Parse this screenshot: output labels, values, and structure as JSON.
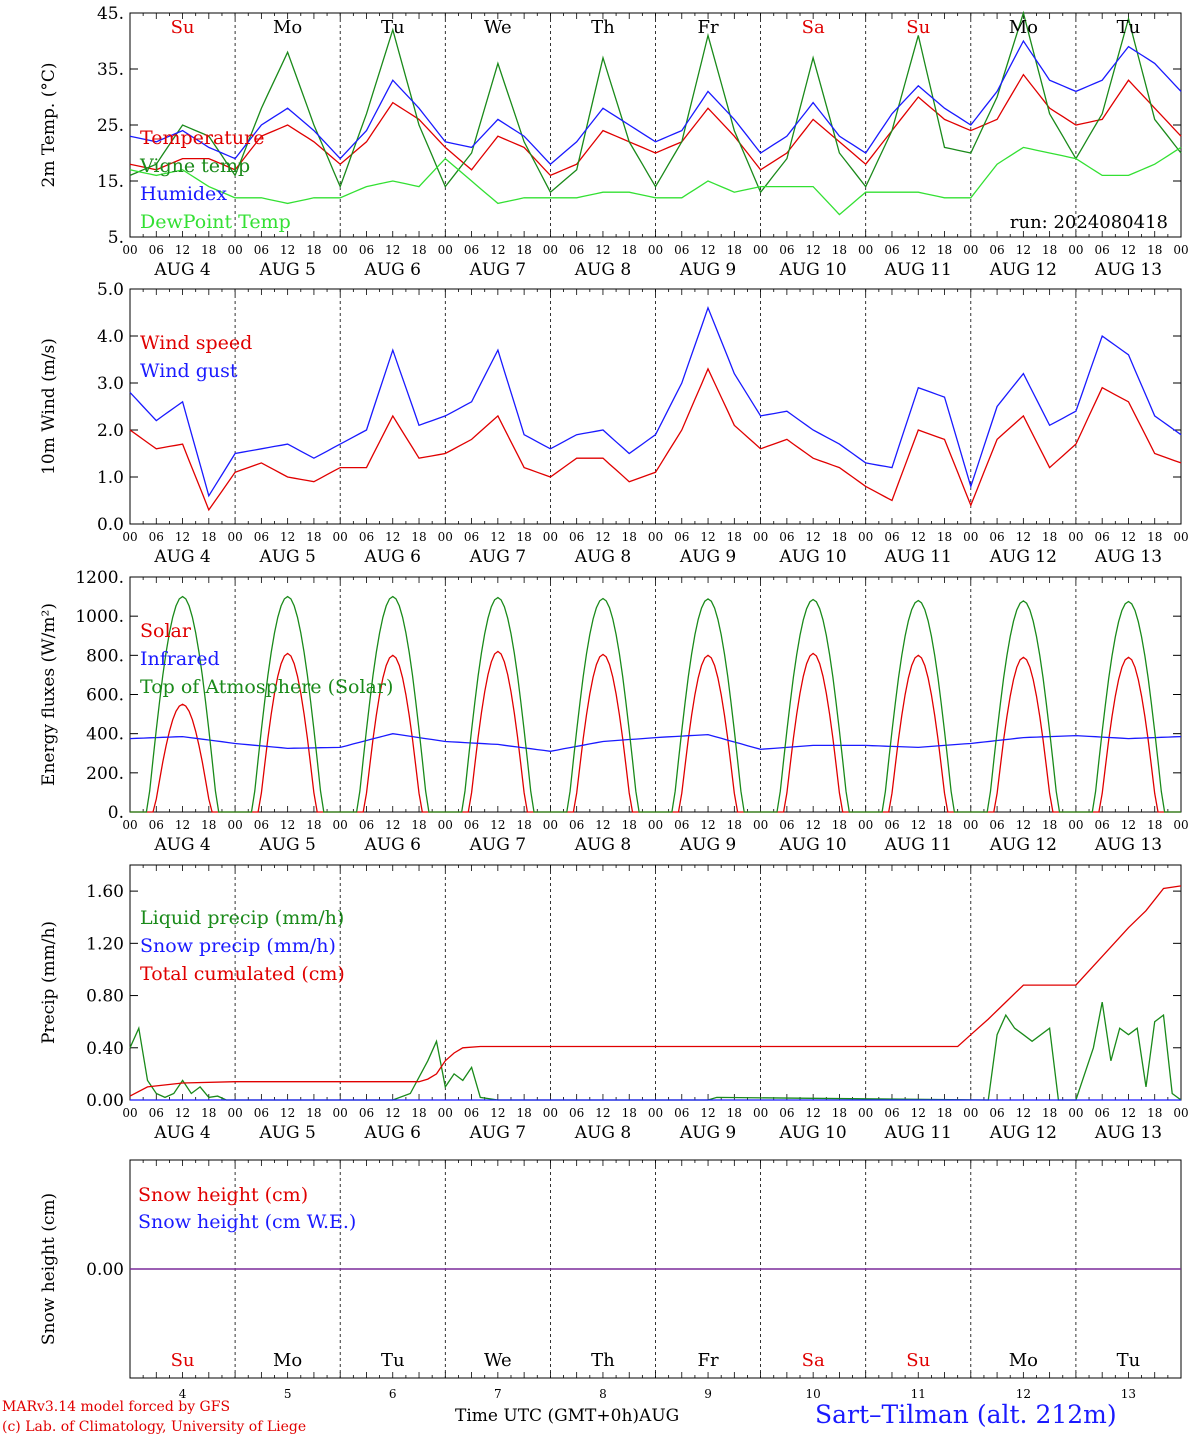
{
  "station": "Sart–Tilman (alt. 212m)",
  "run_label": "run: 2024080418",
  "credit_line1": "MARv3.14 model forced by GFS",
  "credit_line2": "(c) Lab. of Climatology, University of Liege",
  "x_axis_label": "Time UTC (GMT+0h)",
  "month_label": "AUG",
  "colors": {
    "red": "#e00000",
    "green": "#1a8a1a",
    "blue": "#1a1aff",
    "lightgreen": "#33e033",
    "purple": "#7a2a9a",
    "grid": "#000000"
  },
  "days": {
    "names": [
      "Su",
      "Mo",
      "Tu",
      "We",
      "Th",
      "Fr",
      "Sa",
      "Su",
      "Mo",
      "Tu"
    ],
    "weekend": [
      true,
      false,
      false,
      false,
      false,
      false,
      true,
      true,
      false,
      false
    ],
    "labels": [
      "AUG  4",
      "AUG  5",
      "AUG  6",
      "AUG  7",
      "AUG  8",
      "AUG  9",
      "AUG 10",
      "AUG 11",
      "AUG 12",
      "AUG 13"
    ],
    "numbers": [
      "4",
      "5",
      "6",
      "7",
      "8",
      "9",
      "10",
      "11",
      "12",
      "13"
    ],
    "hour_ticks": [
      "00",
      "06",
      "12",
      "18"
    ],
    "end_tick": "00"
  },
  "chart_data": [
    {
      "type": "line",
      "ylabel": "2m Temp. (°C)",
      "ylim": [
        5,
        45
      ],
      "yticks": [
        "5.",
        "15.",
        "25.",
        "35.",
        "45."
      ],
      "x_hours_from_start": [
        0,
        6,
        12,
        18,
        24,
        30,
        36,
        42,
        48,
        54,
        60,
        66,
        72,
        78,
        84,
        90,
        96,
        102,
        108,
        114,
        120,
        126,
        132,
        138,
        144,
        150,
        156,
        162,
        168,
        174,
        180,
        186,
        192,
        198,
        204,
        210,
        216,
        222,
        228,
        234,
        240
      ],
      "series": [
        {
          "name": "Temperature",
          "color": "red",
          "values": [
            18,
            17,
            19,
            19,
            17,
            23,
            25,
            22,
            18,
            22,
            29,
            26,
            21,
            17,
            23,
            21,
            16,
            18,
            24,
            22,
            20,
            22,
            28,
            23,
            17,
            20,
            26,
            22,
            18,
            24,
            30,
            26,
            24,
            26,
            34,
            28,
            25,
            26,
            33,
            28,
            23
          ]
        },
        {
          "name": "Vigne temp",
          "color": "green",
          "values": [
            16,
            18,
            25,
            23,
            16,
            28,
            38,
            25,
            14,
            27,
            42,
            25,
            14,
            20,
            36,
            22,
            13,
            17,
            37,
            22,
            14,
            22,
            41,
            24,
            13,
            19,
            37,
            20,
            14,
            24,
            41,
            21,
            20,
            30,
            45,
            27,
            19,
            27,
            44,
            26,
            20
          ]
        },
        {
          "name": "Humidex",
          "color": "blue",
          "values": [
            23,
            22,
            24,
            21,
            19,
            25,
            28,
            24,
            19,
            24,
            33,
            28,
            22,
            21,
            26,
            23,
            18,
            22,
            28,
            25,
            22,
            24,
            31,
            26,
            20,
            23,
            29,
            23,
            20,
            27,
            32,
            28,
            25,
            31,
            40,
            33,
            31,
            33,
            39,
            36,
            31
          ]
        },
        {
          "name": "DewPoint Temp",
          "color": "lightgreen",
          "values": [
            17,
            16,
            17,
            14,
            12,
            12,
            11,
            12,
            12,
            14,
            15,
            14,
            19,
            15,
            11,
            12,
            12,
            12,
            13,
            13,
            12,
            12,
            15,
            13,
            14,
            14,
            14,
            9,
            13,
            13,
            13,
            12,
            12,
            18,
            21,
            20,
            19,
            16,
            16,
            18,
            21
          ]
        }
      ],
      "annotation": "run: 2024080418"
    },
    {
      "type": "line",
      "ylabel": "10m Wind (m/s)",
      "ylim": [
        0,
        5
      ],
      "yticks": [
        "0.0",
        "1.0",
        "2.0",
        "3.0",
        "4.0",
        "5.0"
      ],
      "x_hours_from_start": [
        0,
        6,
        12,
        18,
        24,
        30,
        36,
        42,
        48,
        54,
        60,
        66,
        72,
        78,
        84,
        90,
        96,
        102,
        108,
        114,
        120,
        126,
        132,
        138,
        144,
        150,
        156,
        162,
        168,
        174,
        180,
        186,
        192,
        198,
        204,
        210,
        216,
        222,
        228,
        234,
        240
      ],
      "series": [
        {
          "name": "Wind speed",
          "color": "red",
          "values": [
            2.0,
            1.6,
            1.7,
            0.3,
            1.1,
            1.3,
            1.0,
            0.9,
            1.2,
            1.2,
            2.3,
            1.4,
            1.5,
            1.8,
            2.3,
            1.2,
            1.0,
            1.4,
            1.4,
            0.9,
            1.1,
            2.0,
            3.3,
            2.1,
            1.6,
            1.8,
            1.4,
            1.2,
            0.8,
            0.5,
            2.0,
            1.8,
            0.4,
            1.8,
            2.3,
            1.2,
            1.7,
            2.9,
            2.6,
            1.5,
            1.3
          ]
        },
        {
          "name": "Wind gust",
          "color": "blue",
          "values": [
            2.8,
            2.2,
            2.6,
            0.6,
            1.5,
            1.6,
            1.7,
            1.4,
            1.7,
            2.0,
            3.7,
            2.1,
            2.3,
            2.6,
            3.7,
            1.9,
            1.6,
            1.9,
            2.0,
            1.5,
            1.9,
            3.0,
            4.6,
            3.2,
            2.3,
            2.4,
            2.0,
            1.7,
            1.3,
            1.2,
            2.9,
            2.7,
            0.8,
            2.5,
            3.2,
            2.1,
            2.4,
            4.0,
            3.6,
            2.3,
            1.9
          ]
        }
      ]
    },
    {
      "type": "line",
      "ylabel": "Energy fluxes (W/m²)",
      "ylim": [
        0,
        1200
      ],
      "yticks": [
        "0.",
        "200.",
        "400.",
        "600.",
        "800.",
        "1000.",
        "1200."
      ],
      "series": [
        {
          "name": "Solar",
          "color": "red",
          "daily_peak": [
            550,
            810,
            800,
            820,
            805,
            800,
            810,
            800,
            790,
            790
          ]
        },
        {
          "name": "Infrared",
          "color": "blue",
          "x_hours_from_start": [
            0,
            12,
            24,
            36,
            48,
            60,
            72,
            84,
            96,
            108,
            120,
            132,
            144,
            156,
            168,
            180,
            192,
            204,
            216,
            228,
            240
          ],
          "values": [
            375,
            385,
            350,
            325,
            330,
            400,
            360,
            345,
            310,
            360,
            380,
            395,
            320,
            340,
            340,
            330,
            350,
            380,
            390,
            375,
            385
          ]
        },
        {
          "name": "Top of Atmosphere (Solar)",
          "color": "green",
          "daily_peak": [
            1100,
            1100,
            1100,
            1095,
            1090,
            1088,
            1085,
            1080,
            1078,
            1075
          ]
        }
      ]
    },
    {
      "type": "line",
      "ylabel": "Precip (mm/h)",
      "ylim": [
        0,
        1.8
      ],
      "yticks": [
        "0.00",
        "0.40",
        "0.80",
        "1.20",
        "1.60"
      ],
      "series": [
        {
          "name": "Liquid precip (mm/h)",
          "color": "green",
          "x_hours_from_start": [
            0,
            2,
            4,
            6,
            8,
            10,
            12,
            14,
            16,
            18,
            20,
            22,
            24,
            48,
            60,
            64,
            68,
            70,
            72,
            74,
            76,
            78,
            80,
            84,
            132,
            134,
            196,
            198,
            200,
            202,
            204,
            206,
            210,
            212,
            216,
            220,
            222,
            224,
            226,
            228,
            230,
            232,
            234,
            236,
            238,
            240
          ],
          "values": [
            0.4,
            0.55,
            0.15,
            0.05,
            0.02,
            0.05,
            0.15,
            0.05,
            0.1,
            0.02,
            0.03,
            0.0,
            0.0,
            0.0,
            0.0,
            0.05,
            0.3,
            0.45,
            0.1,
            0.2,
            0.15,
            0.25,
            0.02,
            0.0,
            0.0,
            0.02,
            0.0,
            0.5,
            0.65,
            0.55,
            0.5,
            0.45,
            0.55,
            0.0,
            0.0,
            0.4,
            0.75,
            0.3,
            0.55,
            0.5,
            0.55,
            0.1,
            0.6,
            0.65,
            0.05,
            0.0
          ]
        },
        {
          "name": "Snow precip (mm/h)",
          "color": "blue",
          "x_hours_from_start": [
            0,
            240
          ],
          "values": [
            0.0,
            0.0
          ]
        },
        {
          "name": "Total cumulated (cm)",
          "color": "red",
          "x_hours_from_start": [
            0,
            4,
            12,
            24,
            48,
            66,
            68,
            70,
            72,
            74,
            76,
            80,
            96,
            120,
            144,
            168,
            189,
            192,
            196,
            200,
            204,
            210,
            216,
            222,
            228,
            232,
            236,
            240
          ],
          "values": [
            0.03,
            0.1,
            0.13,
            0.14,
            0.14,
            0.14,
            0.16,
            0.2,
            0.3,
            0.36,
            0.4,
            0.41,
            0.41,
            0.41,
            0.41,
            0.41,
            0.41,
            0.5,
            0.62,
            0.75,
            0.88,
            0.88,
            0.88,
            1.1,
            1.32,
            1.45,
            1.62,
            1.64
          ]
        }
      ]
    },
    {
      "type": "line",
      "ylabel": "Snow height (cm)",
      "yticks": [
        "0.00"
      ],
      "series": [
        {
          "name": "Snow height (cm)",
          "color": "red",
          "values": [
            0,
            0
          ]
        },
        {
          "name": "Snow height (cm W.E.)",
          "color": "blue",
          "values": [
            0,
            0
          ]
        }
      ]
    }
  ]
}
